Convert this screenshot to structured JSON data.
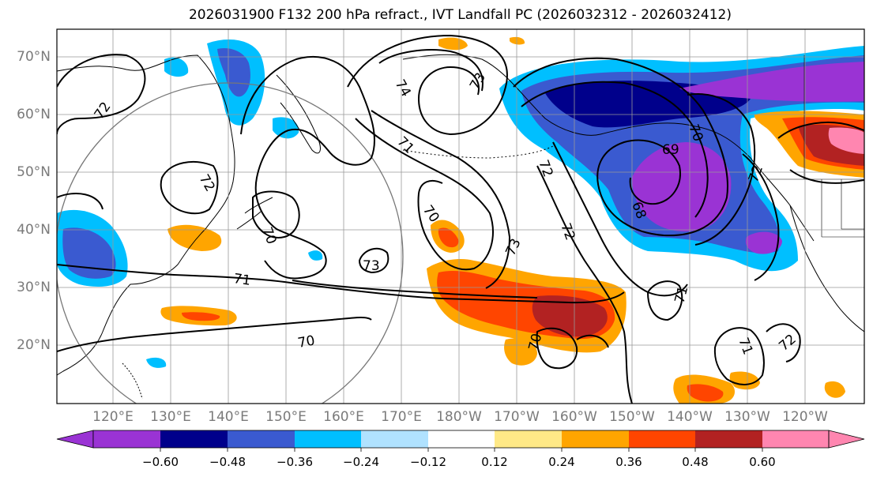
{
  "title": "2026031900 F132 200 hPa refract., IVT Landfall PC (2026032312 - 2026032412)",
  "map": {
    "lat_labels": [
      "70°N",
      "60°N",
      "50°N",
      "40°N",
      "30°N",
      "20°N"
    ],
    "lon_labels": [
      "120°E",
      "130°E",
      "140°E",
      "150°E",
      "160°E",
      "170°E",
      "180°W",
      "170°W",
      "160°W",
      "150°W",
      "140°W",
      "130°W",
      "120°W"
    ],
    "contour_labels": [
      "72",
      "72",
      "74",
      "73",
      "71",
      "70",
      "70",
      "73",
      "73",
      "71",
      "70",
      "72",
      "72",
      "69",
      "68",
      "70",
      "72",
      "71",
      "72",
      "70",
      "71"
    ]
  },
  "colorbar": {
    "ticks": [
      "−0.60",
      "−0.48",
      "−0.36",
      "−0.24",
      "−0.12",
      "0.12",
      "0.24",
      "0.36",
      "0.48",
      "0.60"
    ],
    "colors": [
      "#9a33d4",
      "#00008b",
      "#3a5ad0",
      "#00bfff",
      "#b0e2ff",
      "#ffffff",
      "#ffe987",
      "#ffa500",
      "#ff4500",
      "#b22222",
      "#ff86b0"
    ]
  },
  "colors": {
    "strong_negative": "#9a33d4",
    "negative": "#3a5ad0",
    "weak_negative": "#00bfff",
    "weak_positive": "#ffe987",
    "positive": "#ffa500",
    "strong_positive": "#ff4500",
    "very_strong_positive": "#b22222",
    "extreme_positive": "#ff86b0"
  }
}
